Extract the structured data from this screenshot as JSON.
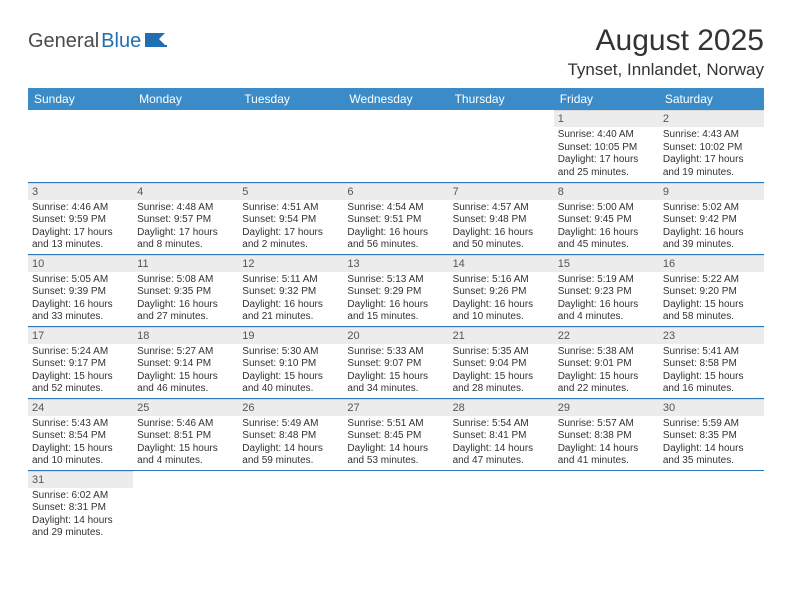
{
  "brand": {
    "part1": "General",
    "part2": "Blue"
  },
  "title": "August 2025",
  "location": "Tynset, Innlandet, Norway",
  "colors": {
    "header_bg": "#3b8bc8",
    "header_text": "#ffffff",
    "daynum_bg": "#ececec",
    "grid_divider": "#2f77b5",
    "text": "#333333"
  },
  "weekdays": [
    "Sunday",
    "Monday",
    "Tuesday",
    "Wednesday",
    "Thursday",
    "Friday",
    "Saturday"
  ],
  "weeks": [
    [
      null,
      null,
      null,
      null,
      null,
      {
        "n": "1",
        "sunrise": "4:40 AM",
        "sunset": "10:05 PM",
        "day_h": "17",
        "day_m": "25"
      },
      {
        "n": "2",
        "sunrise": "4:43 AM",
        "sunset": "10:02 PM",
        "day_h": "17",
        "day_m": "19"
      }
    ],
    [
      {
        "n": "3",
        "sunrise": "4:46 AM",
        "sunset": "9:59 PM",
        "day_h": "17",
        "day_m": "13"
      },
      {
        "n": "4",
        "sunrise": "4:48 AM",
        "sunset": "9:57 PM",
        "day_h": "17",
        "day_m": "8"
      },
      {
        "n": "5",
        "sunrise": "4:51 AM",
        "sunset": "9:54 PM",
        "day_h": "17",
        "day_m": "2"
      },
      {
        "n": "6",
        "sunrise": "4:54 AM",
        "sunset": "9:51 PM",
        "day_h": "16",
        "day_m": "56"
      },
      {
        "n": "7",
        "sunrise": "4:57 AM",
        "sunset": "9:48 PM",
        "day_h": "16",
        "day_m": "50"
      },
      {
        "n": "8",
        "sunrise": "5:00 AM",
        "sunset": "9:45 PM",
        "day_h": "16",
        "day_m": "45"
      },
      {
        "n": "9",
        "sunrise": "5:02 AM",
        "sunset": "9:42 PM",
        "day_h": "16",
        "day_m": "39"
      }
    ],
    [
      {
        "n": "10",
        "sunrise": "5:05 AM",
        "sunset": "9:39 PM",
        "day_h": "16",
        "day_m": "33"
      },
      {
        "n": "11",
        "sunrise": "5:08 AM",
        "sunset": "9:35 PM",
        "day_h": "16",
        "day_m": "27"
      },
      {
        "n": "12",
        "sunrise": "5:11 AM",
        "sunset": "9:32 PM",
        "day_h": "16",
        "day_m": "21"
      },
      {
        "n": "13",
        "sunrise": "5:13 AM",
        "sunset": "9:29 PM",
        "day_h": "16",
        "day_m": "15"
      },
      {
        "n": "14",
        "sunrise": "5:16 AM",
        "sunset": "9:26 PM",
        "day_h": "16",
        "day_m": "10"
      },
      {
        "n": "15",
        "sunrise": "5:19 AM",
        "sunset": "9:23 PM",
        "day_h": "16",
        "day_m": "4"
      },
      {
        "n": "16",
        "sunrise": "5:22 AM",
        "sunset": "9:20 PM",
        "day_h": "15",
        "day_m": "58"
      }
    ],
    [
      {
        "n": "17",
        "sunrise": "5:24 AM",
        "sunset": "9:17 PM",
        "day_h": "15",
        "day_m": "52"
      },
      {
        "n": "18",
        "sunrise": "5:27 AM",
        "sunset": "9:14 PM",
        "day_h": "15",
        "day_m": "46"
      },
      {
        "n": "19",
        "sunrise": "5:30 AM",
        "sunset": "9:10 PM",
        "day_h": "15",
        "day_m": "40"
      },
      {
        "n": "20",
        "sunrise": "5:33 AM",
        "sunset": "9:07 PM",
        "day_h": "15",
        "day_m": "34"
      },
      {
        "n": "21",
        "sunrise": "5:35 AM",
        "sunset": "9:04 PM",
        "day_h": "15",
        "day_m": "28"
      },
      {
        "n": "22",
        "sunrise": "5:38 AM",
        "sunset": "9:01 PM",
        "day_h": "15",
        "day_m": "22"
      },
      {
        "n": "23",
        "sunrise": "5:41 AM",
        "sunset": "8:58 PM",
        "day_h": "15",
        "day_m": "16"
      }
    ],
    [
      {
        "n": "24",
        "sunrise": "5:43 AM",
        "sunset": "8:54 PM",
        "day_h": "15",
        "day_m": "10"
      },
      {
        "n": "25",
        "sunrise": "5:46 AM",
        "sunset": "8:51 PM",
        "day_h": "15",
        "day_m": "4"
      },
      {
        "n": "26",
        "sunrise": "5:49 AM",
        "sunset": "8:48 PM",
        "day_h": "14",
        "day_m": "59"
      },
      {
        "n": "27",
        "sunrise": "5:51 AM",
        "sunset": "8:45 PM",
        "day_h": "14",
        "day_m": "53"
      },
      {
        "n": "28",
        "sunrise": "5:54 AM",
        "sunset": "8:41 PM",
        "day_h": "14",
        "day_m": "47"
      },
      {
        "n": "29",
        "sunrise": "5:57 AM",
        "sunset": "8:38 PM",
        "day_h": "14",
        "day_m": "41"
      },
      {
        "n": "30",
        "sunrise": "5:59 AM",
        "sunset": "8:35 PM",
        "day_h": "14",
        "day_m": "35"
      }
    ],
    [
      {
        "n": "31",
        "sunrise": "6:02 AM",
        "sunset": "8:31 PM",
        "day_h": "14",
        "day_m": "29"
      },
      null,
      null,
      null,
      null,
      null,
      null
    ]
  ]
}
